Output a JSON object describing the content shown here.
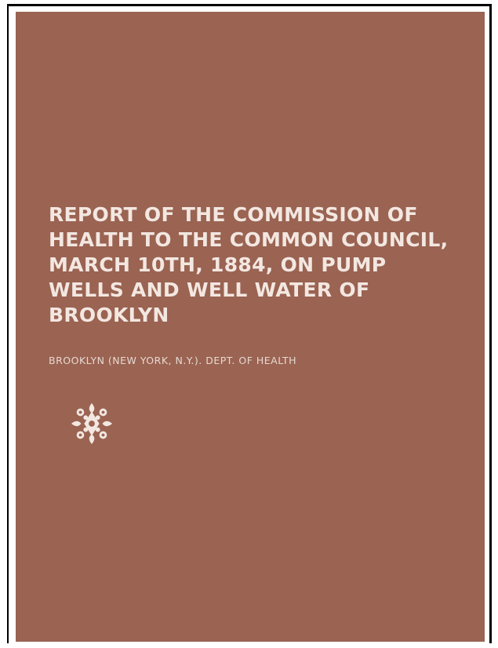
{
  "cover": {
    "title": "REPORT OF THE COMMISSION OF HEALTH TO THE COMMON COUNCIL, MARCH 10TH, 1884, ON PUMP WELLS AND WELL WATER OF BROOKLYN",
    "author": "BROOKLYN (NEW YORK, N.Y.). DEPT. OF HEALTH",
    "ornament_icon": "publisher-ornament-icon",
    "colors": {
      "background": "#9a6352",
      "text": "#f3e7e1",
      "border": "#000000"
    }
  }
}
